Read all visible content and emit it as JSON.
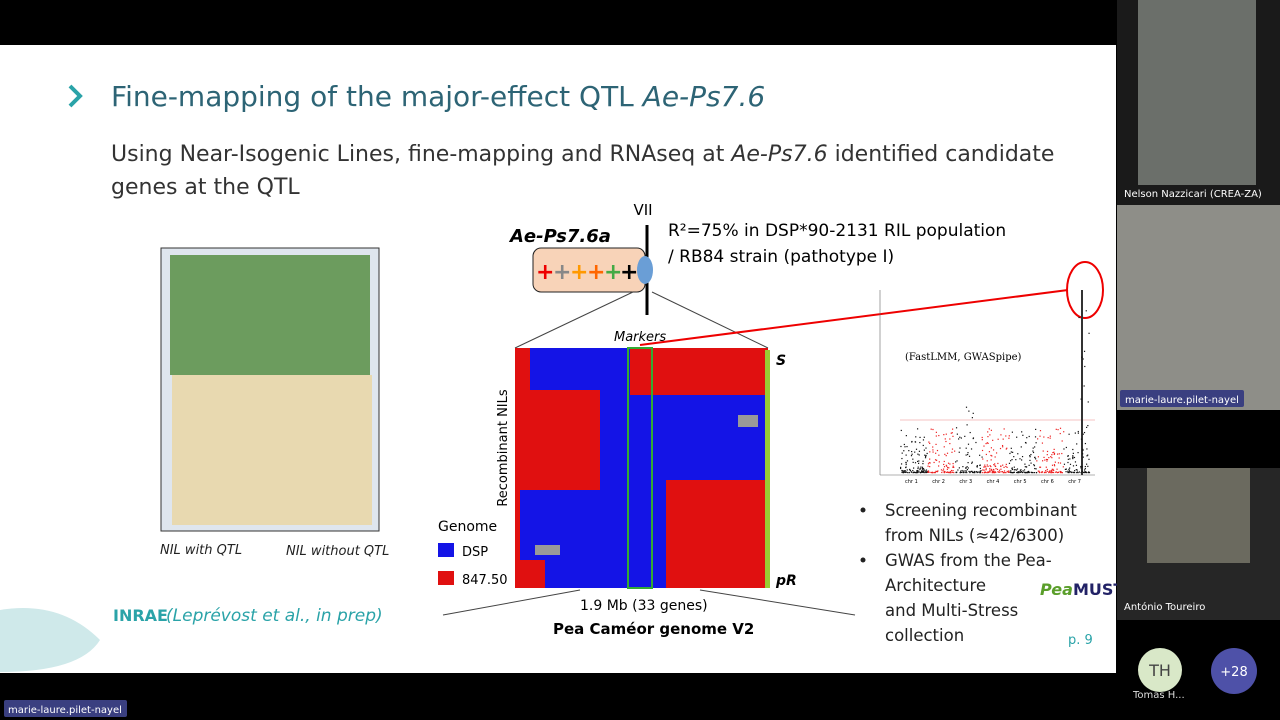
{
  "slide": {
    "title": {
      "text": "Fine-mapping of the major-effect QTL ",
      "italic": "Ae-Ps7.6"
    },
    "subtitle": {
      "line1": "Using Near-Isogenic Lines, fine-mapping and RNAseq at ",
      "italic": "Ae-Ps7.6",
      "line1_end": " identified candidate",
      "line2": "genes at the QTL"
    },
    "photo_captions": [
      "NIL with QTL",
      "NIL without QTL"
    ],
    "logo": "INRAE",
    "citation": "(Leprévost et al., in prep)",
    "diagram": {
      "chromosome": "VII",
      "qtl": "Ae-Ps7.6a",
      "r2_line1": "R²=75% in DSP*90-2131 RIL population",
      "r2_line2": "/ RB84 strain (pathotype I)",
      "markers": "Markers",
      "y_label": "Recombinant NILs",
      "top": "S",
      "bottom": "pR",
      "legend_title": "Genome",
      "legend": [
        "DSP",
        "847.50"
      ],
      "interval": "1.9 Mb (33 genes)",
      "genome": "Pea Caméor genome V2"
    },
    "gwas": {
      "method": "(FastLMM, GWASpipe)",
      "chromosomes": [
        "chr 1",
        "chr 2",
        "chr 3",
        "chr 4",
        "chr 5",
        "chr 6",
        "chr 7"
      ]
    },
    "bullets": [
      "Screening recombinant",
      "from NILs (≈42/6300)",
      "GWAS from the Pea-",
      "Architecture",
      "and Multi-Stress",
      "collection"
    ],
    "peamust": {
      "a": "Pea",
      "b": "MUST"
    },
    "page": "p. 9"
  },
  "participants": {
    "tile1": "Nelson Nazzicari (CREA-ZA)",
    "tile2": "marie-laure.pilet-nayel",
    "tile3": "António Toureiro",
    "avatar": "TH",
    "avatar_name": "Tomas H...",
    "more": "+28"
  },
  "speaker": "marie-laure.pilet-nayel"
}
